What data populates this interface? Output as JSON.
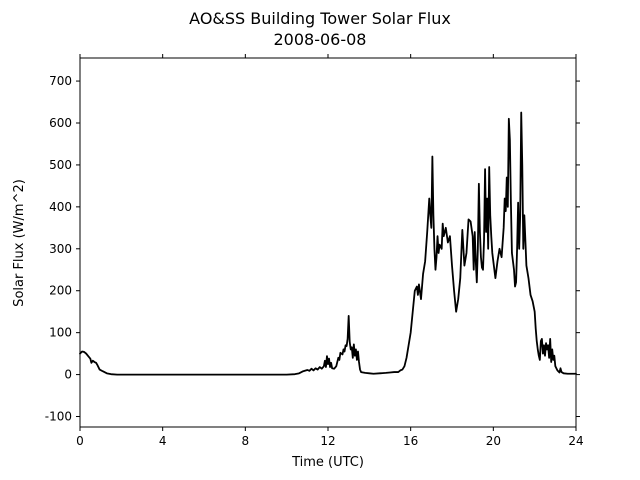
{
  "chart_data": {
    "type": "line",
    "title": "AO&SS Building Tower Solar Flux",
    "subtitle": "2008-06-08",
    "xlabel": "Time (UTC)",
    "ylabel": "Solar Flux (W/m^2)",
    "xlim": [
      0,
      24
    ],
    "ylim": [
      -125,
      755
    ],
    "xticks": [
      0,
      4,
      8,
      12,
      16,
      20,
      24
    ],
    "yticks": [
      -100,
      0,
      100,
      200,
      300,
      400,
      500,
      600,
      700
    ],
    "grid": false,
    "line_color": "#000000",
    "series": [
      {
        "points": [
          [
            0.0,
            50
          ],
          [
            0.1,
            55
          ],
          [
            0.2,
            54
          ],
          [
            0.3,
            50
          ],
          [
            0.4,
            44
          ],
          [
            0.5,
            38
          ],
          [
            0.55,
            28
          ],
          [
            0.62,
            33
          ],
          [
            0.7,
            30
          ],
          [
            0.78,
            28
          ],
          [
            0.85,
            22
          ],
          [
            0.95,
            12
          ],
          [
            1.1,
            8
          ],
          [
            1.3,
            3
          ],
          [
            1.5,
            1
          ],
          [
            1.8,
            0
          ],
          [
            2.0,
            0
          ],
          [
            3.0,
            0
          ],
          [
            4.0,
            0
          ],
          [
            5.0,
            0
          ],
          [
            6.0,
            0
          ],
          [
            7.0,
            0
          ],
          [
            8.0,
            0
          ],
          [
            9.0,
            0
          ],
          [
            10.0,
            0
          ],
          [
            10.4,
            1
          ],
          [
            10.6,
            3
          ],
          [
            10.8,
            8
          ],
          [
            11.0,
            11
          ],
          [
            11.1,
            9
          ],
          [
            11.2,
            14
          ],
          [
            11.3,
            10
          ],
          [
            11.4,
            15
          ],
          [
            11.5,
            12
          ],
          [
            11.6,
            18
          ],
          [
            11.7,
            14
          ],
          [
            11.8,
            20
          ],
          [
            11.85,
            33
          ],
          [
            11.9,
            18
          ],
          [
            11.95,
            44
          ],
          [
            12.0,
            25
          ],
          [
            12.05,
            38
          ],
          [
            12.1,
            18
          ],
          [
            12.15,
            28
          ],
          [
            12.2,
            15
          ],
          [
            12.3,
            14
          ],
          [
            12.4,
            20
          ],
          [
            12.5,
            40
          ],
          [
            12.55,
            35
          ],
          [
            12.6,
            52
          ],
          [
            12.7,
            48
          ],
          [
            12.75,
            60
          ],
          [
            12.8,
            55
          ],
          [
            12.85,
            70
          ],
          [
            12.9,
            68
          ],
          [
            12.95,
            85
          ],
          [
            13.0,
            140
          ],
          [
            13.05,
            78
          ],
          [
            13.1,
            60
          ],
          [
            13.15,
            65
          ],
          [
            13.2,
            40
          ],
          [
            13.25,
            72
          ],
          [
            13.3,
            45
          ],
          [
            13.35,
            60
          ],
          [
            13.4,
            35
          ],
          [
            13.45,
            55
          ],
          [
            13.5,
            30
          ],
          [
            13.55,
            12
          ],
          [
            13.6,
            6
          ],
          [
            13.8,
            4
          ],
          [
            14.0,
            3
          ],
          [
            14.2,
            2
          ],
          [
            14.5,
            3
          ],
          [
            14.8,
            4
          ],
          [
            15.0,
            5
          ],
          [
            15.2,
            6
          ],
          [
            15.4,
            6
          ],
          [
            15.5,
            10
          ],
          [
            15.6,
            12
          ],
          [
            15.7,
            20
          ],
          [
            15.8,
            40
          ],
          [
            15.9,
            70
          ],
          [
            16.0,
            100
          ],
          [
            16.1,
            150
          ],
          [
            16.2,
            200
          ],
          [
            16.3,
            210
          ],
          [
            16.35,
            190
          ],
          [
            16.4,
            215
          ],
          [
            16.5,
            180
          ],
          [
            16.55,
            210
          ],
          [
            16.6,
            240
          ],
          [
            16.7,
            270
          ],
          [
            16.8,
            340
          ],
          [
            16.9,
            420
          ],
          [
            16.95,
            380
          ],
          [
            17.0,
            350
          ],
          [
            17.05,
            520
          ],
          [
            17.1,
            380
          ],
          [
            17.15,
            300
          ],
          [
            17.2,
            250
          ],
          [
            17.25,
            280
          ],
          [
            17.3,
            330
          ],
          [
            17.35,
            290
          ],
          [
            17.4,
            310
          ],
          [
            17.5,
            300
          ],
          [
            17.55,
            360
          ],
          [
            17.6,
            330
          ],
          [
            17.7,
            350
          ],
          [
            17.8,
            315
          ],
          [
            17.9,
            330
          ],
          [
            18.0,
            260
          ],
          [
            18.1,
            200
          ],
          [
            18.2,
            150
          ],
          [
            18.3,
            180
          ],
          [
            18.4,
            230
          ],
          [
            18.5,
            345
          ],
          [
            18.6,
            260
          ],
          [
            18.7,
            290
          ],
          [
            18.8,
            370
          ],
          [
            18.9,
            365
          ],
          [
            19.0,
            330
          ],
          [
            19.05,
            250
          ],
          [
            19.1,
            340
          ],
          [
            19.15,
            270
          ],
          [
            19.2,
            220
          ],
          [
            19.25,
            300
          ],
          [
            19.3,
            455
          ],
          [
            19.35,
            340
          ],
          [
            19.4,
            280
          ],
          [
            19.45,
            255
          ],
          [
            19.5,
            250
          ],
          [
            19.55,
            320
          ],
          [
            19.6,
            490
          ],
          [
            19.65,
            340
          ],
          [
            19.7,
            420
          ],
          [
            19.75,
            300
          ],
          [
            19.8,
            495
          ],
          [
            19.85,
            380
          ],
          [
            19.9,
            330
          ],
          [
            19.95,
            290
          ],
          [
            20.0,
            270
          ],
          [
            20.1,
            230
          ],
          [
            20.2,
            270
          ],
          [
            20.3,
            300
          ],
          [
            20.4,
            280
          ],
          [
            20.5,
            350
          ],
          [
            20.55,
            420
          ],
          [
            20.6,
            390
          ],
          [
            20.65,
            470
          ],
          [
            20.7,
            400
          ],
          [
            20.75,
            610
          ],
          [
            20.8,
            560
          ],
          [
            20.85,
            410
          ],
          [
            20.9,
            290
          ],
          [
            21.0,
            250
          ],
          [
            21.05,
            210
          ],
          [
            21.1,
            220
          ],
          [
            21.15,
            300
          ],
          [
            21.2,
            410
          ],
          [
            21.25,
            300
          ],
          [
            21.3,
            380
          ],
          [
            21.35,
            625
          ],
          [
            21.4,
            500
          ],
          [
            21.45,
            300
          ],
          [
            21.5,
            380
          ],
          [
            21.55,
            320
          ],
          [
            21.6,
            260
          ],
          [
            21.7,
            230
          ],
          [
            21.8,
            190
          ],
          [
            21.9,
            175
          ],
          [
            22.0,
            150
          ],
          [
            22.05,
            110
          ],
          [
            22.1,
            80
          ],
          [
            22.15,
            60
          ],
          [
            22.2,
            45
          ],
          [
            22.25,
            35
          ],
          [
            22.3,
            80
          ],
          [
            22.35,
            85
          ],
          [
            22.4,
            50
          ],
          [
            22.45,
            70
          ],
          [
            22.5,
            45
          ],
          [
            22.55,
            75
          ],
          [
            22.6,
            60
          ],
          [
            22.65,
            70
          ],
          [
            22.7,
            40
          ],
          [
            22.75,
            85
          ],
          [
            22.8,
            30
          ],
          [
            22.85,
            60
          ],
          [
            22.9,
            35
          ],
          [
            22.95,
            45
          ],
          [
            23.0,
            20
          ],
          [
            23.1,
            10
          ],
          [
            23.2,
            5
          ],
          [
            23.25,
            15
          ],
          [
            23.3,
            6
          ],
          [
            23.4,
            3
          ],
          [
            23.6,
            2
          ],
          [
            24.0,
            2
          ]
        ]
      }
    ]
  }
}
